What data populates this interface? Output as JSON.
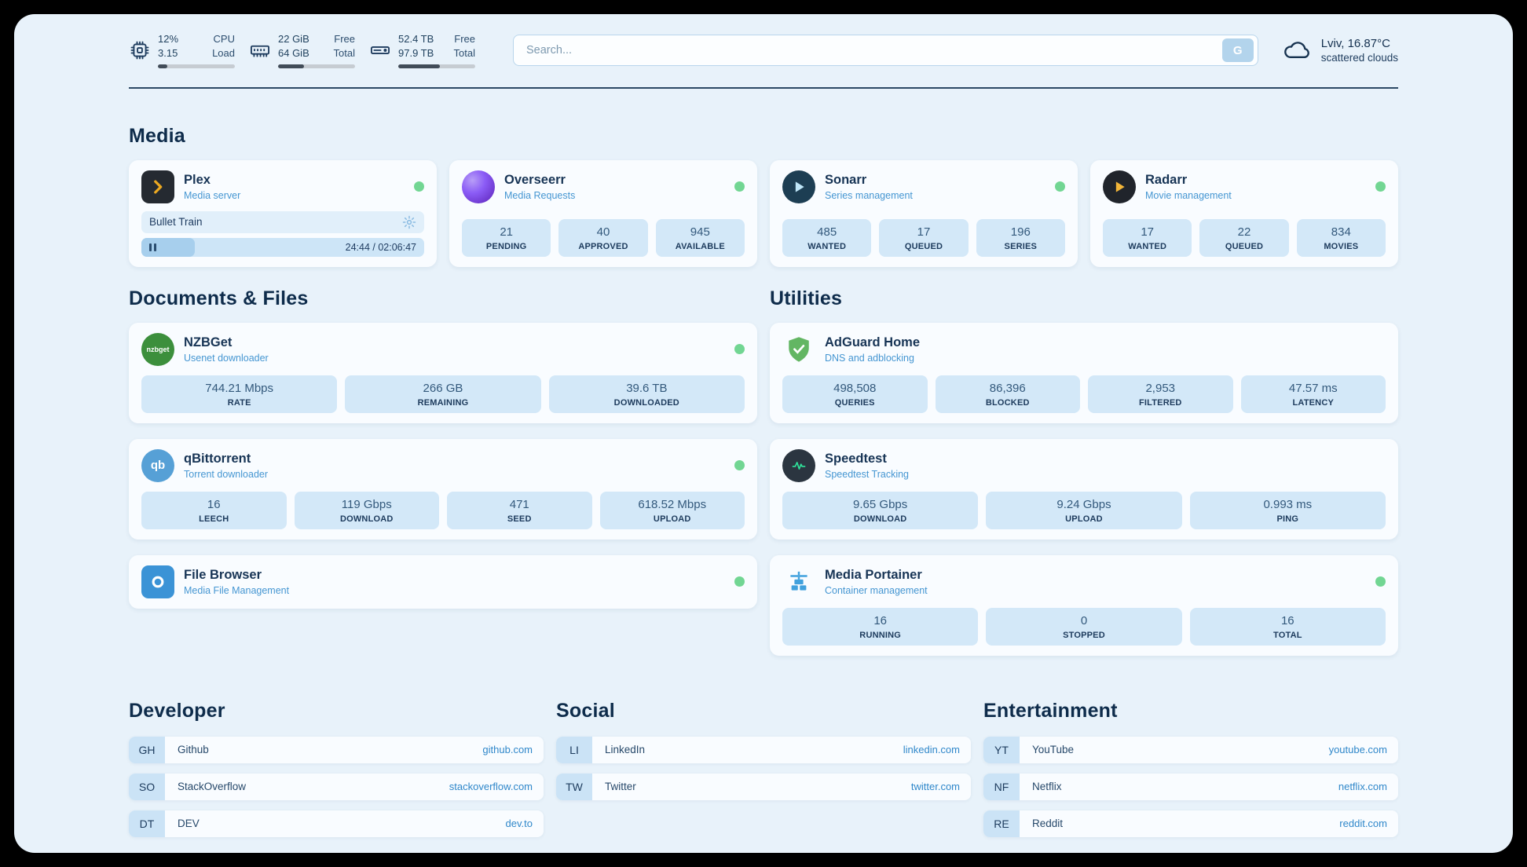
{
  "colors": {
    "page_bg": "#e8f2fa",
    "card_bg": "#f9fcff",
    "stat_bg": "#d3e8f8",
    "accent_blue": "#4596d2",
    "link_blue": "#2f87ca",
    "status_green": "#72d693"
  },
  "header": {
    "cpu": {
      "value_top": "12%",
      "value_bottom": "3.15",
      "label_top": "CPU",
      "label_bottom": "Load",
      "percent": 12
    },
    "ram": {
      "value_top": "22 GiB",
      "value_bottom": "64 GiB",
      "label_top": "Free",
      "label_bottom": "Total",
      "percent": 34
    },
    "disk": {
      "value_top": "52.4 TB",
      "value_bottom": "97.9 TB",
      "label_top": "Free",
      "label_bottom": "Total",
      "percent": 54
    },
    "search": {
      "placeholder": "Search...",
      "button_label": "G"
    },
    "weather": {
      "location": "Lviv, 16.87°C",
      "condition": "scattered clouds"
    }
  },
  "media": {
    "title": "Media",
    "plex": {
      "title": "Plex",
      "subtitle": "Media server",
      "online": true,
      "player": {
        "track_title": "Bullet Train",
        "time": "24:44 / 02:06:47",
        "progress_percent": 19
      }
    },
    "overseerr": {
      "title": "Overseerr",
      "subtitle": "Media Requests",
      "online": true,
      "stats": [
        {
          "value": "21",
          "label": "PENDING"
        },
        {
          "value": "40",
          "label": "APPROVED"
        },
        {
          "value": "945",
          "label": "AVAILABLE"
        }
      ]
    },
    "sonarr": {
      "title": "Sonarr",
      "subtitle": "Series management",
      "online": true,
      "stats": [
        {
          "value": "485",
          "label": "WANTED"
        },
        {
          "value": "17",
          "label": "QUEUED"
        },
        {
          "value": "196",
          "label": "SERIES"
        }
      ]
    },
    "radarr": {
      "title": "Radarr",
      "subtitle": "Movie management",
      "online": true,
      "stats": [
        {
          "value": "17",
          "label": "WANTED"
        },
        {
          "value": "22",
          "label": "QUEUED"
        },
        {
          "value": "834",
          "label": "MOVIES"
        }
      ]
    }
  },
  "documents": {
    "title": "Documents & Files",
    "nzbget": {
      "title": "NZBGet",
      "subtitle": "Usenet downloader",
      "online": true,
      "icon_text": "nzbget",
      "stats": [
        {
          "value": "744.21 Mbps",
          "label": "RATE"
        },
        {
          "value": "266 GB",
          "label": "REMAINING"
        },
        {
          "value": "39.6 TB",
          "label": "DOWNLOADED"
        }
      ]
    },
    "qbittorrent": {
      "title": "qBittorrent",
      "subtitle": "Torrent downloader",
      "online": true,
      "icon_text": "qb",
      "stats": [
        {
          "value": "16",
          "label": "LEECH"
        },
        {
          "value": "119 Gbps",
          "label": "DOWNLOAD"
        },
        {
          "value": "471",
          "label": "SEED"
        },
        {
          "value": "618.52 Mbps",
          "label": "UPLOAD"
        }
      ]
    },
    "filebrowser": {
      "title": "File Browser",
      "subtitle": "Media File Management",
      "online": true
    }
  },
  "utilities": {
    "title": "Utilities",
    "adguard": {
      "title": "AdGuard Home",
      "subtitle": "DNS and adblocking",
      "stats": [
        {
          "value": "498,508",
          "label": "QUERIES"
        },
        {
          "value": "86,396",
          "label": "BLOCKED"
        },
        {
          "value": "2,953",
          "label": "FILTERED"
        },
        {
          "value": "47.57 ms",
          "label": "LATENCY"
        }
      ]
    },
    "speedtest": {
      "title": "Speedtest",
      "subtitle": "Speedtest Tracking",
      "stats": [
        {
          "value": "9.65 Gbps",
          "label": "DOWNLOAD"
        },
        {
          "value": "9.24 Gbps",
          "label": "UPLOAD"
        },
        {
          "value": "0.993 ms",
          "label": "PING"
        }
      ]
    },
    "portainer": {
      "title": "Media Portainer",
      "subtitle": "Container management",
      "online": true,
      "stats": [
        {
          "value": "16",
          "label": "RUNNING"
        },
        {
          "value": "0",
          "label": "STOPPED"
        },
        {
          "value": "16",
          "label": "TOTAL"
        }
      ]
    }
  },
  "bookmarks": {
    "developer": {
      "title": "Developer",
      "items": [
        {
          "abbr": "GH",
          "name": "Github",
          "url": "github.com"
        },
        {
          "abbr": "SO",
          "name": "StackOverflow",
          "url": "stackoverflow.com"
        },
        {
          "abbr": "DT",
          "name": "DEV",
          "url": "dev.to"
        }
      ]
    },
    "social": {
      "title": "Social",
      "items": [
        {
          "abbr": "LI",
          "name": "LinkedIn",
          "url": "linkedin.com"
        },
        {
          "abbr": "TW",
          "name": "Twitter",
          "url": "twitter.com"
        }
      ]
    },
    "entertainment": {
      "title": "Entertainment",
      "items": [
        {
          "abbr": "YT",
          "name": "YouTube",
          "url": "youtube.com"
        },
        {
          "abbr": "NF",
          "name": "Netflix",
          "url": "netflix.com"
        },
        {
          "abbr": "RE",
          "name": "Reddit",
          "url": "reddit.com"
        }
      ]
    }
  }
}
